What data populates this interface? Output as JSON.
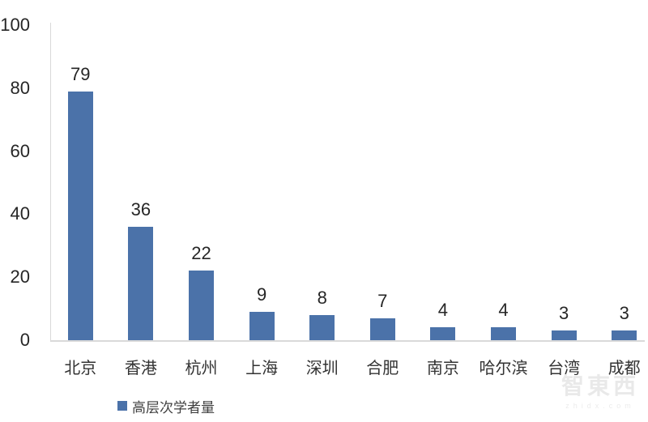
{
  "chart_data": {
    "type": "bar",
    "title": "",
    "xlabel": "",
    "ylabel": "",
    "categories": [
      "北京",
      "香港",
      "杭州",
      "上海",
      "深圳",
      "合肥",
      "南京",
      "哈尔滨",
      "台湾",
      "成都"
    ],
    "values": [
      79,
      36,
      22,
      9,
      8,
      7,
      4,
      4,
      3,
      3
    ],
    "series": [
      {
        "name": "高层次学者量",
        "values": [
          79,
          36,
          22,
          9,
          8,
          7,
          4,
          4,
          3,
          3
        ]
      }
    ],
    "ylim": [
      0,
      100
    ],
    "yticks": [
      0,
      20,
      40,
      60,
      80,
      100
    ],
    "grid": false,
    "data_labels": true,
    "legend_position": "bottom-left",
    "bar_color": "#4b72a9",
    "axis_line_color": "#d9d9d9",
    "label_color": "#262626"
  },
  "legend": {
    "label": "高层次学者量"
  },
  "watermark": {
    "brand": "智東西",
    "site": "zhidx.com"
  }
}
